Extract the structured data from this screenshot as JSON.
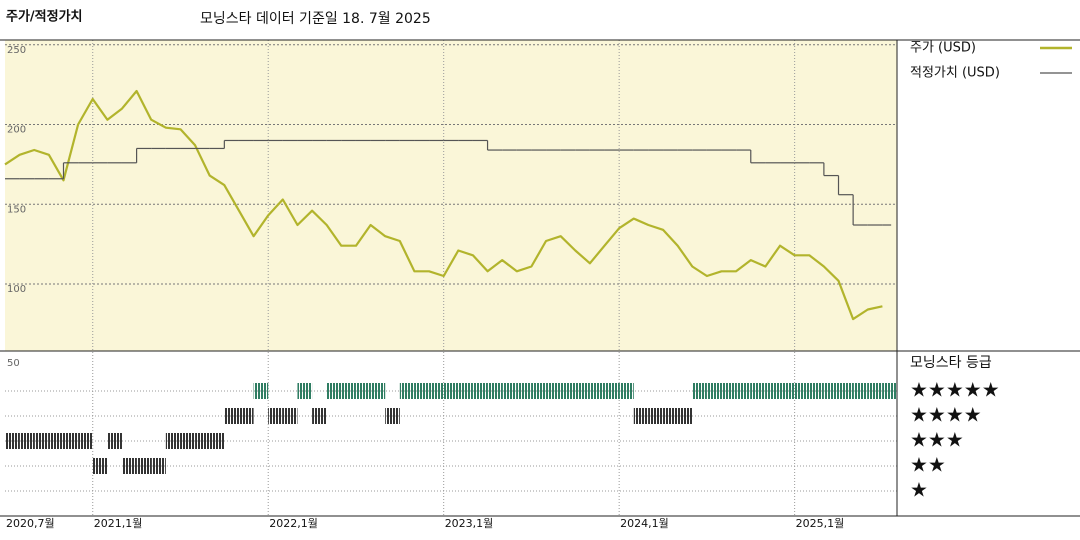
{
  "chart_data": [
    {
      "type": "line",
      "title": "주가/적정가치",
      "subtitle": "모닝스타 데이터 기준일 18. 7월 2025",
      "x": [
        "2020-07",
        "2020-08",
        "2020-09",
        "2020-10",
        "2020-11",
        "2020-12",
        "2021-01",
        "2021-02",
        "2021-03",
        "2021-04",
        "2021-05",
        "2021-06",
        "2021-07",
        "2021-08",
        "2021-09",
        "2021-10",
        "2021-11",
        "2021-12",
        "2022-01",
        "2022-02",
        "2022-03",
        "2022-04",
        "2022-05",
        "2022-06",
        "2022-07",
        "2022-08",
        "2022-09",
        "2022-10",
        "2022-11",
        "2022-12",
        "2023-01",
        "2023-02",
        "2023-03",
        "2023-04",
        "2023-05",
        "2023-06",
        "2023-07",
        "2023-08",
        "2023-09",
        "2023-10",
        "2023-11",
        "2023-12",
        "2024-01",
        "2024-02",
        "2024-03",
        "2024-04",
        "2024-05",
        "2024-06",
        "2024-07",
        "2024-08",
        "2024-09",
        "2024-10",
        "2024-11",
        "2024-12",
        "2025-01",
        "2025-02",
        "2025-03",
        "2025-04",
        "2025-05",
        "2025-06",
        "2025-07"
      ],
      "series": [
        {
          "name": "주가 (USD)",
          "color": "#b2b42c",
          "values": [
            175,
            181,
            184,
            181,
            165,
            200,
            216,
            203,
            210,
            221,
            203,
            198,
            197,
            187,
            168,
            162,
            146,
            130,
            143,
            153,
            137,
            146,
            137,
            124,
            124,
            137,
            130,
            127,
            108,
            108,
            105,
            121,
            118,
            108,
            115,
            108,
            111,
            127,
            130,
            121,
            113,
            124,
            135,
            141,
            137,
            134,
            124,
            111,
            105,
            108,
            108,
            115,
            111,
            124,
            118,
            118,
            111,
            102,
            78,
            84,
            86
          ]
        },
        {
          "name": "적정가치 (USD)",
          "color": "#555555",
          "step": true,
          "values": [
            166,
            166,
            166,
            166,
            176,
            176,
            176,
            176,
            176,
            185,
            185,
            185,
            185,
            185,
            185,
            190,
            190,
            190,
            190,
            190,
            190,
            190,
            190,
            190,
            190,
            190,
            190,
            190,
            190,
            190,
            190,
            190,
            190,
            184,
            184,
            184,
            184,
            184,
            184,
            184,
            184,
            184,
            184,
            184,
            184,
            184,
            184,
            184,
            184,
            184,
            184,
            176,
            176,
            176,
            176,
            176,
            168,
            156,
            137,
            137,
            137
          ]
        }
      ],
      "xlim": [
        "2020-07",
        "2025-08"
      ],
      "xticks": [
        {
          "value": "2020-07",
          "label": "2020,7월"
        },
        {
          "value": "2021-01",
          "label": "2021,1월"
        },
        {
          "value": "2022-01",
          "label": "2022,1월"
        },
        {
          "value": "2023-01",
          "label": "2023,1월"
        },
        {
          "value": "2024-01",
          "label": "2024,1월"
        },
        {
          "value": "2025-01",
          "label": "2025,1월"
        }
      ],
      "ylim": [
        58,
        253
      ],
      "yticks": [
        100,
        150,
        200,
        250
      ],
      "grid": true,
      "background": "#faf6d8"
    },
    {
      "type": "rating",
      "title": "모닝스타 등급",
      "axis_label": "50",
      "x": [
        "2020-07",
        "2020-08",
        "2020-09",
        "2020-10",
        "2020-11",
        "2020-12",
        "2021-01",
        "2021-02",
        "2021-03",
        "2021-04",
        "2021-05",
        "2021-06",
        "2021-07",
        "2021-08",
        "2021-09",
        "2021-10",
        "2021-11",
        "2021-12",
        "2022-01",
        "2022-02",
        "2022-03",
        "2022-04",
        "2022-05",
        "2022-06",
        "2022-07",
        "2022-08",
        "2022-09",
        "2022-10",
        "2022-11",
        "2022-12",
        "2023-01",
        "2023-02",
        "2023-03",
        "2023-04",
        "2023-05",
        "2023-06",
        "2023-07",
        "2023-08",
        "2023-09",
        "2023-10",
        "2023-11",
        "2023-12",
        "2024-01",
        "2024-02",
        "2024-03",
        "2024-04",
        "2024-05",
        "2024-06",
        "2024-07",
        "2024-08",
        "2024-09",
        "2024-10",
        "2024-11",
        "2024-12",
        "2025-01",
        "2025-02",
        "2025-03",
        "2025-04",
        "2025-05",
        "2025-06",
        "2025-07"
      ],
      "values": [
        3,
        3,
        3,
        3,
        3,
        3,
        2,
        3,
        2,
        2,
        2,
        3,
        3,
        3,
        3,
        4,
        4,
        5,
        4,
        4,
        5,
        4,
        5,
        5,
        5,
        5,
        4,
        5,
        5,
        5,
        5,
        5,
        5,
        5,
        5,
        5,
        5,
        5,
        5,
        5,
        5,
        5,
        5,
        4,
        4,
        4,
        4,
        5,
        5,
        5,
        5,
        5,
        5,
        5,
        5,
        5,
        5,
        5,
        5,
        5,
        5
      ],
      "ylim": [
        0,
        6.6
      ],
      "yticks": [
        {
          "value": 1,
          "label": "★"
        },
        {
          "value": 2,
          "label": "★★"
        },
        {
          "value": 3,
          "label": "★★★"
        },
        {
          "value": 4,
          "label": "★★★★"
        },
        {
          "value": 5,
          "label": "★★★★★"
        }
      ],
      "colors": [
        "#333333",
        "#333333",
        "#333333",
        "#333333",
        "#2f7d62"
      ]
    }
  ]
}
